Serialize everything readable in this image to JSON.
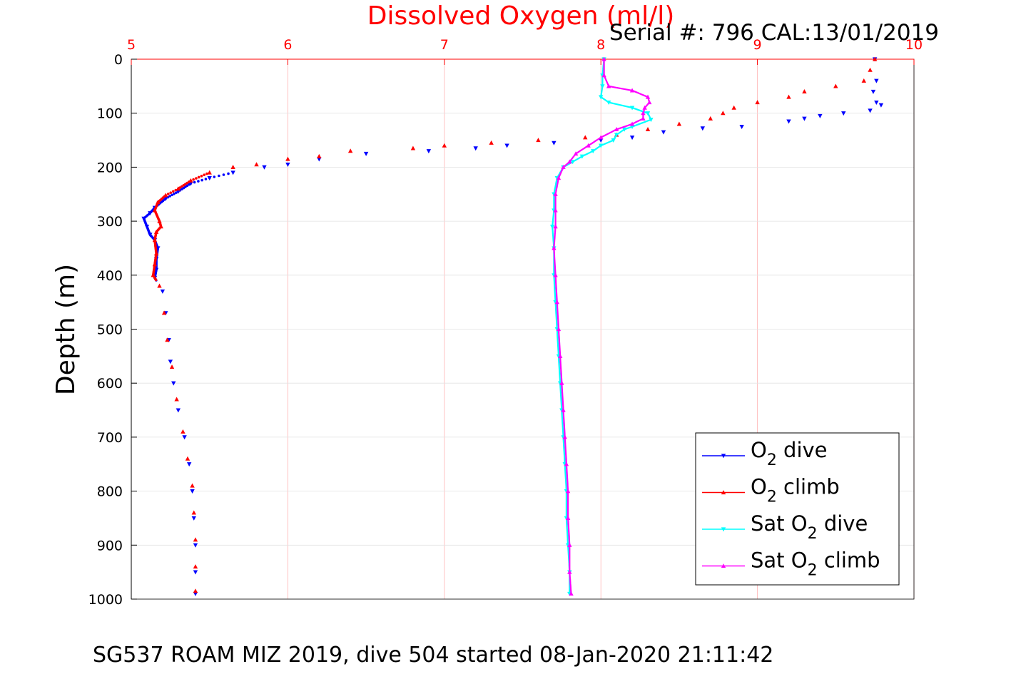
{
  "chart_data": {
    "type": "scatter",
    "title": "Dissolved Oxygen (ml/l)",
    "subtitle": "Serial #: 796  CAL:13/01/2019",
    "footer": "SG537 ROAM MIZ 2019, dive 504 started 08-Jan-2020 21:11:42",
    "xlabel": "Dissolved Oxygen (ml/l)",
    "ylabel": "Depth (m)",
    "xlim": [
      5,
      10
    ],
    "ylim": [
      0,
      1000
    ],
    "y_reversed": true,
    "x_axis_position": "top",
    "grid": true,
    "x_ticks": [
      "5",
      "6",
      "7",
      "8",
      "9",
      "10"
    ],
    "y_ticks": [
      "0",
      "100",
      "200",
      "300",
      "400",
      "500",
      "600",
      "700",
      "800",
      "900",
      "1000"
    ],
    "legend": {
      "placement": "bottom-right",
      "entries": [
        {
          "name": "O",
          "sub": "2",
          "rest": " dive"
        },
        {
          "name": "O",
          "sub": "2",
          "rest": " climb"
        },
        {
          "name": "Sat O",
          "sub": "2",
          "rest": " dive"
        },
        {
          "name": "Sat O",
          "sub": "2",
          "rest": " climb"
        }
      ]
    },
    "colors": {
      "title": "#ff0000",
      "axis": "#ff0000",
      "grid": "#ffb3b3",
      "o2_dive": "#0000ff",
      "o2_climb": "#ff0000",
      "sat_dive": "#00ffff",
      "sat_climb": "#ff00ff"
    },
    "series": [
      {
        "name": "O2 dive",
        "marker": "triangle-down",
        "color": "#0000ff",
        "points": [
          [
            9.75,
            0
          ],
          [
            9.76,
            40
          ],
          [
            9.74,
            60
          ],
          [
            9.76,
            80
          ],
          [
            9.79,
            85
          ],
          [
            9.72,
            95
          ],
          [
            9.55,
            100
          ],
          [
            9.4,
            105
          ],
          [
            9.3,
            110
          ],
          [
            9.2,
            115
          ],
          [
            8.9,
            125
          ],
          [
            8.65,
            128
          ],
          [
            8.4,
            135
          ],
          [
            8.2,
            145
          ],
          [
            8.0,
            150
          ],
          [
            7.7,
            155
          ],
          [
            7.4,
            160
          ],
          [
            7.2,
            165
          ],
          [
            6.9,
            170
          ],
          [
            6.5,
            175
          ],
          [
            6.2,
            185
          ],
          [
            6.0,
            195
          ],
          [
            5.85,
            200
          ],
          [
            5.65,
            210
          ],
          [
            5.5,
            220
          ],
          [
            5.38,
            230
          ],
          [
            5.3,
            245
          ],
          [
            5.22,
            258
          ],
          [
            5.15,
            275
          ],
          [
            5.12,
            285
          ],
          [
            5.08,
            295
          ],
          [
            5.1,
            310
          ],
          [
            5.12,
            325
          ],
          [
            5.15,
            335
          ],
          [
            5.17,
            350
          ],
          [
            5.16,
            370
          ],
          [
            5.16,
            390
          ],
          [
            5.15,
            405
          ],
          [
            5.2,
            430
          ],
          [
            5.22,
            470
          ],
          [
            5.24,
            520
          ],
          [
            5.25,
            560
          ],
          [
            5.27,
            600
          ],
          [
            5.3,
            650
          ],
          [
            5.34,
            700
          ],
          [
            5.37,
            750
          ],
          [
            5.39,
            800
          ],
          [
            5.4,
            850
          ],
          [
            5.41,
            900
          ],
          [
            5.41,
            950
          ],
          [
            5.41,
            990
          ]
        ]
      },
      {
        "name": "O2 climb",
        "marker": "triangle-up",
        "color": "#ff0000",
        "points": [
          [
            9.75,
            0
          ],
          [
            9.72,
            20
          ],
          [
            9.68,
            40
          ],
          [
            9.5,
            50
          ],
          [
            9.3,
            60
          ],
          [
            9.2,
            70
          ],
          [
            9.0,
            80
          ],
          [
            8.85,
            90
          ],
          [
            8.78,
            100
          ],
          [
            8.7,
            110
          ],
          [
            8.5,
            120
          ],
          [
            8.3,
            130
          ],
          [
            8.1,
            140
          ],
          [
            7.9,
            145
          ],
          [
            7.6,
            150
          ],
          [
            7.3,
            155
          ],
          [
            7.0,
            160
          ],
          [
            6.8,
            165
          ],
          [
            6.4,
            170
          ],
          [
            6.2,
            180
          ],
          [
            6.0,
            185
          ],
          [
            5.8,
            195
          ],
          [
            5.65,
            200
          ],
          [
            5.5,
            210
          ],
          [
            5.38,
            225
          ],
          [
            5.3,
            240
          ],
          [
            5.22,
            252
          ],
          [
            5.17,
            265
          ],
          [
            5.15,
            280
          ],
          [
            5.18,
            300
          ],
          [
            5.19,
            310
          ],
          [
            5.16,
            320
          ],
          [
            5.15,
            335
          ],
          [
            5.16,
            360
          ],
          [
            5.15,
            380
          ],
          [
            5.14,
            400
          ],
          [
            5.18,
            420
          ],
          [
            5.21,
            470
          ],
          [
            5.23,
            520
          ],
          [
            5.26,
            570
          ],
          [
            5.29,
            630
          ],
          [
            5.33,
            690
          ],
          [
            5.36,
            740
          ],
          [
            5.39,
            790
          ],
          [
            5.4,
            840
          ],
          [
            5.41,
            890
          ],
          [
            5.41,
            940
          ],
          [
            5.41,
            985
          ]
        ]
      },
      {
        "name": "Sat O2 dive",
        "marker": "triangle-down",
        "color": "#00ffff",
        "points": [
          [
            8.02,
            0
          ],
          [
            8.01,
            30
          ],
          [
            8.01,
            50
          ],
          [
            8.0,
            70
          ],
          [
            8.05,
            80
          ],
          [
            8.2,
            90
          ],
          [
            8.3,
            100
          ],
          [
            8.32,
            112
          ],
          [
            8.2,
            125
          ],
          [
            8.15,
            130
          ],
          [
            8.1,
            140
          ],
          [
            8.08,
            150
          ],
          [
            8.0,
            160
          ],
          [
            7.95,
            170
          ],
          [
            7.88,
            180
          ],
          [
            7.82,
            190
          ],
          [
            7.76,
            200
          ],
          [
            7.72,
            220
          ],
          [
            7.7,
            250
          ],
          [
            7.7,
            280
          ],
          [
            7.69,
            310
          ],
          [
            7.7,
            350
          ],
          [
            7.7,
            400
          ],
          [
            7.71,
            450
          ],
          [
            7.72,
            500
          ],
          [
            7.73,
            550
          ],
          [
            7.74,
            600
          ],
          [
            7.75,
            650
          ],
          [
            7.76,
            700
          ],
          [
            7.77,
            750
          ],
          [
            7.78,
            800
          ],
          [
            7.78,
            850
          ],
          [
            7.79,
            900
          ],
          [
            7.8,
            950
          ],
          [
            7.8,
            990
          ]
        ]
      },
      {
        "name": "Sat O2 climb",
        "marker": "triangle-up",
        "color": "#ff00ff",
        "points": [
          [
            8.02,
            0
          ],
          [
            8.02,
            30
          ],
          [
            8.05,
            50
          ],
          [
            8.2,
            58
          ],
          [
            8.3,
            70
          ],
          [
            8.31,
            80
          ],
          [
            8.28,
            90
          ],
          [
            8.27,
            100
          ],
          [
            8.27,
            110
          ],
          [
            8.2,
            120
          ],
          [
            8.1,
            130
          ],
          [
            8.0,
            145
          ],
          [
            7.92,
            160
          ],
          [
            7.84,
            175
          ],
          [
            7.8,
            190
          ],
          [
            7.76,
            200
          ],
          [
            7.73,
            220
          ],
          [
            7.71,
            250
          ],
          [
            7.71,
            280
          ],
          [
            7.71,
            310
          ],
          [
            7.7,
            350
          ],
          [
            7.71,
            400
          ],
          [
            7.72,
            450
          ],
          [
            7.73,
            500
          ],
          [
            7.74,
            550
          ],
          [
            7.75,
            600
          ],
          [
            7.76,
            650
          ],
          [
            7.77,
            700
          ],
          [
            7.78,
            750
          ],
          [
            7.79,
            800
          ],
          [
            7.79,
            850
          ],
          [
            7.8,
            900
          ],
          [
            7.8,
            950
          ],
          [
            7.81,
            990
          ]
        ]
      }
    ]
  }
}
